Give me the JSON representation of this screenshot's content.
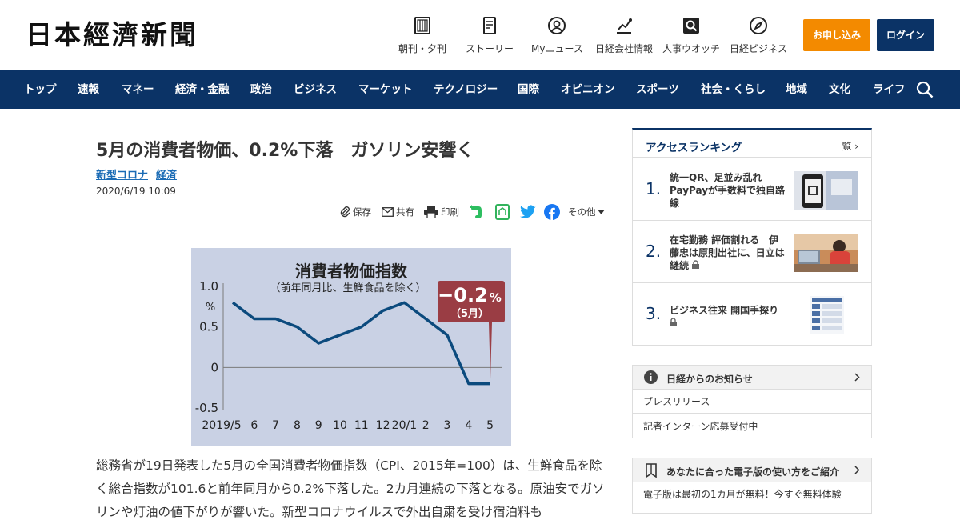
{
  "header": {
    "logo": "日本經濟新聞",
    "nav": [
      {
        "label": "朝刊・夕刊",
        "icon": "newspaper-icon"
      },
      {
        "label": "ストーリー",
        "icon": "story-icon"
      },
      {
        "label": "Myニュース",
        "icon": "user-icon"
      },
      {
        "label": "日経会社情報",
        "icon": "chart-icon"
      },
      {
        "label": "人事ウオッチ",
        "icon": "search-icon"
      },
      {
        "label": "日経ビジネス",
        "icon": "compass-icon"
      }
    ],
    "subscribe_label": "お申し込み",
    "login_label": "ログイン"
  },
  "categories": [
    "トップ",
    "速報",
    "マネー",
    "経済・金融",
    "政治",
    "ビジネス",
    "マーケット",
    "テクノロジー",
    "国際",
    "オピニオン",
    "スポーツ",
    "社会・くらし",
    "地域",
    "文化",
    "ライフ"
  ],
  "article": {
    "title": "5月の消費者物価、0.2%下落　ガソリン安響く",
    "tags": [
      "新型コロナ",
      "経済"
    ],
    "date": "2020/6/19 10:09",
    "share": {
      "save": "保存",
      "share": "共有",
      "print": "印刷",
      "more": "その他"
    },
    "body": "総務省が19日発表した5月の全国消費者物価指数（CPI、2015年=100）は、生鮮食品を除く総合指数が101.6と前年同月から0.2%下落した。2カ月連続の下落となる。原油安でガソリンや灯油の値下がりが響いた。新型コロナウイルスで外出自粛を受け宿泊料も"
  },
  "chart_data": {
    "type": "line",
    "title": "消費者物価指数",
    "subtitle": "（前年同月比、生鮮食品を除く）",
    "ylabel": "%",
    "ylim": [
      -0.5,
      1.0
    ],
    "yticks": [
      "1.0",
      "0.5",
      "0",
      "-0.5"
    ],
    "categories": [
      "2019/5",
      "6",
      "7",
      "8",
      "9",
      "10",
      "11",
      "12",
      "20/1",
      "2",
      "3",
      "4",
      "5"
    ],
    "values": [
      0.8,
      0.6,
      0.6,
      0.5,
      0.3,
      0.4,
      0.5,
      0.7,
      0.8,
      0.6,
      0.4,
      -0.2,
      -0.2
    ],
    "callout": {
      "value": "−0.2",
      "unit": "%",
      "label": "（5月）"
    },
    "colors": {
      "line": "#0b4a7d",
      "background": "#c9d1e4",
      "callout": "#9a3d44"
    }
  },
  "sidebar": {
    "ranking": {
      "title": "アクセスランキング",
      "all_label": "一覧",
      "items": [
        {
          "rank": "1.",
          "text": "統一QR、足並み乱れ PayPayが手数料で独自路線",
          "locked": false
        },
        {
          "rank": "2.",
          "text": "在宅勤務 評価割れる　伊藤忠は原則出社に、日立は継続",
          "locked": true
        },
        {
          "rank": "3.",
          "text": "ビジネス往来 開国手探り",
          "locked": true
        }
      ]
    },
    "notices": {
      "title": "日経からのお知らせ",
      "items": [
        "プレスリリース",
        "記者インターン応募受付中"
      ]
    },
    "guide": {
      "title": "あなたに合った電子版の使い方をご紹介",
      "items": [
        "電子版は最初の1カ月が無料！今すぐ無料体験"
      ]
    }
  }
}
